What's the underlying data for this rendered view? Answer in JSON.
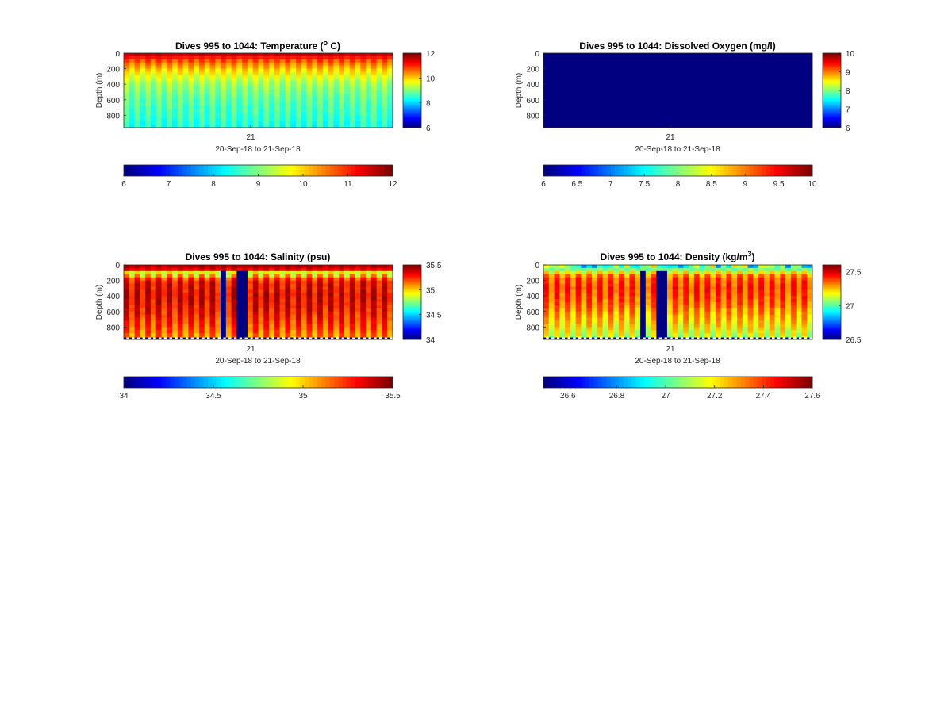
{
  "figure": {
    "background": "#ffffff",
    "colormap": "jet"
  },
  "chart_data": [
    {
      "type": "heatmap",
      "title": "Dives 995 to 1044: Temperature (",
      "title_super": "o",
      "title_tail": " C)",
      "ylabel": "Depth (m)",
      "xlabel": "20-Sep-18 to 21-Sep-18",
      "x_tick_labels": [
        "21"
      ],
      "y_range": [
        0,
        1000
      ],
      "y_ticks": [
        0,
        200,
        400,
        600,
        800
      ],
      "y_tick_labels": [
        "0",
        "200",
        "400",
        "600",
        "800"
      ],
      "dive_range": [
        995,
        1044
      ],
      "dive_count": 50,
      "clim": [
        6,
        12
      ],
      "colorbar_ticks": [
        6,
        8,
        10,
        12
      ],
      "colorbar_tick_labels": [
        "6",
        "8",
        "10",
        "12"
      ],
      "hcolorbar_ticks": [
        6,
        7,
        8,
        9,
        10,
        11,
        12
      ],
      "hcolorbar_tick_labels": [
        "6",
        "7",
        "8",
        "9",
        "10",
        "11",
        "12"
      ],
      "profile": {
        "depths": [
          0,
          40,
          120,
          250,
          400,
          600,
          800,
          960
        ],
        "values": [
          11.8,
          11.3,
          10.6,
          9.8,
          9.2,
          8.8,
          8.6,
          8.4
        ]
      }
    },
    {
      "type": "heatmap",
      "title": "Dives 995 to 1044: Dissolved Oxygen (mg/l)",
      "title_super": "",
      "title_tail": "",
      "ylabel": "Depth (m)",
      "xlabel": "20-Sep-18 to 21-Sep-18",
      "x_tick_labels": [
        "21"
      ],
      "y_range": [
        0,
        1000
      ],
      "y_ticks": [
        0,
        200,
        400,
        600,
        800
      ],
      "y_tick_labels": [
        "0",
        "200",
        "400",
        "600",
        "800"
      ],
      "dive_range": [
        995,
        1044
      ],
      "dive_count": 50,
      "clim": [
        6,
        10
      ],
      "colorbar_ticks": [
        6,
        7,
        8,
        9,
        10
      ],
      "colorbar_tick_labels": [
        "6",
        "7",
        "8",
        "9",
        "10"
      ],
      "hcolorbar_ticks": [
        6,
        6.5,
        7,
        7.5,
        8,
        8.5,
        9,
        9.5,
        10
      ],
      "hcolorbar_tick_labels": [
        "6",
        "6.5",
        "7",
        "7.5",
        "8",
        "8.5",
        "9",
        "9.5",
        "10"
      ],
      "uniform_value": 6
    },
    {
      "type": "heatmap",
      "title": "Dives 995 to 1044: Salinity (psu)",
      "title_super": "",
      "title_tail": "",
      "ylabel": "Depth (m)",
      "xlabel": "20-Sep-18 to 21-Sep-18",
      "x_tick_labels": [
        "21"
      ],
      "y_range": [
        0,
        1000
      ],
      "y_ticks": [
        0,
        200,
        400,
        600,
        800
      ],
      "y_tick_labels": [
        "0",
        "200",
        "400",
        "600",
        "800"
      ],
      "dive_range": [
        995,
        1044
      ],
      "dive_count": 50,
      "clim": [
        34,
        35.5
      ],
      "colorbar_ticks": [
        34,
        34.5,
        35,
        35.5
      ],
      "colorbar_tick_labels": [
        "34",
        "34.5",
        "35",
        "35.5"
      ],
      "hcolorbar_ticks": [
        34,
        34.5,
        35,
        35.5
      ],
      "hcolorbar_tick_labels": [
        "34",
        "34.5",
        "35",
        "35.5"
      ],
      "gap_value": 34,
      "profile": {
        "depths": [
          0,
          50,
          100,
          200,
          400,
          600,
          800,
          960
        ],
        "values": [
          35.4,
          35.45,
          34.9,
          35.3,
          35.35,
          35.3,
          35.2,
          35.1
        ]
      }
    },
    {
      "type": "heatmap",
      "title": "Dives 995 to 1044: Density (kg/m",
      "title_super": "3",
      "title_tail": ")",
      "ylabel": "Depth (m)",
      "xlabel": "20-Sep-18 to 21-Sep-18",
      "x_tick_labels": [
        "21"
      ],
      "y_range": [
        0,
        1000
      ],
      "y_ticks": [
        0,
        200,
        400,
        600,
        800
      ],
      "y_tick_labels": [
        "0",
        "200",
        "400",
        "600",
        "800"
      ],
      "dive_range": [
        995,
        1044
      ],
      "dive_count": 50,
      "clim": [
        26.5,
        27.6
      ],
      "colorbar_ticks": [
        26.5,
        27,
        27.5
      ],
      "colorbar_tick_labels": [
        "26.5",
        "27",
        "27.5"
      ],
      "hcolorbar_ticks": [
        26.6,
        26.8,
        27,
        27.2,
        27.4,
        27.6
      ],
      "hcolorbar_tick_labels": [
        "26.6",
        "26.8",
        "27",
        "27.2",
        "27.4",
        "27.6"
      ],
      "gap_value": 26.5,
      "profile": {
        "depths": [
          0,
          50,
          150,
          300,
          500,
          700,
          900,
          960
        ],
        "values": [
          26.9,
          27.0,
          27.35,
          27.4,
          27.35,
          27.25,
          27.15,
          27.1
        ]
      }
    }
  ]
}
